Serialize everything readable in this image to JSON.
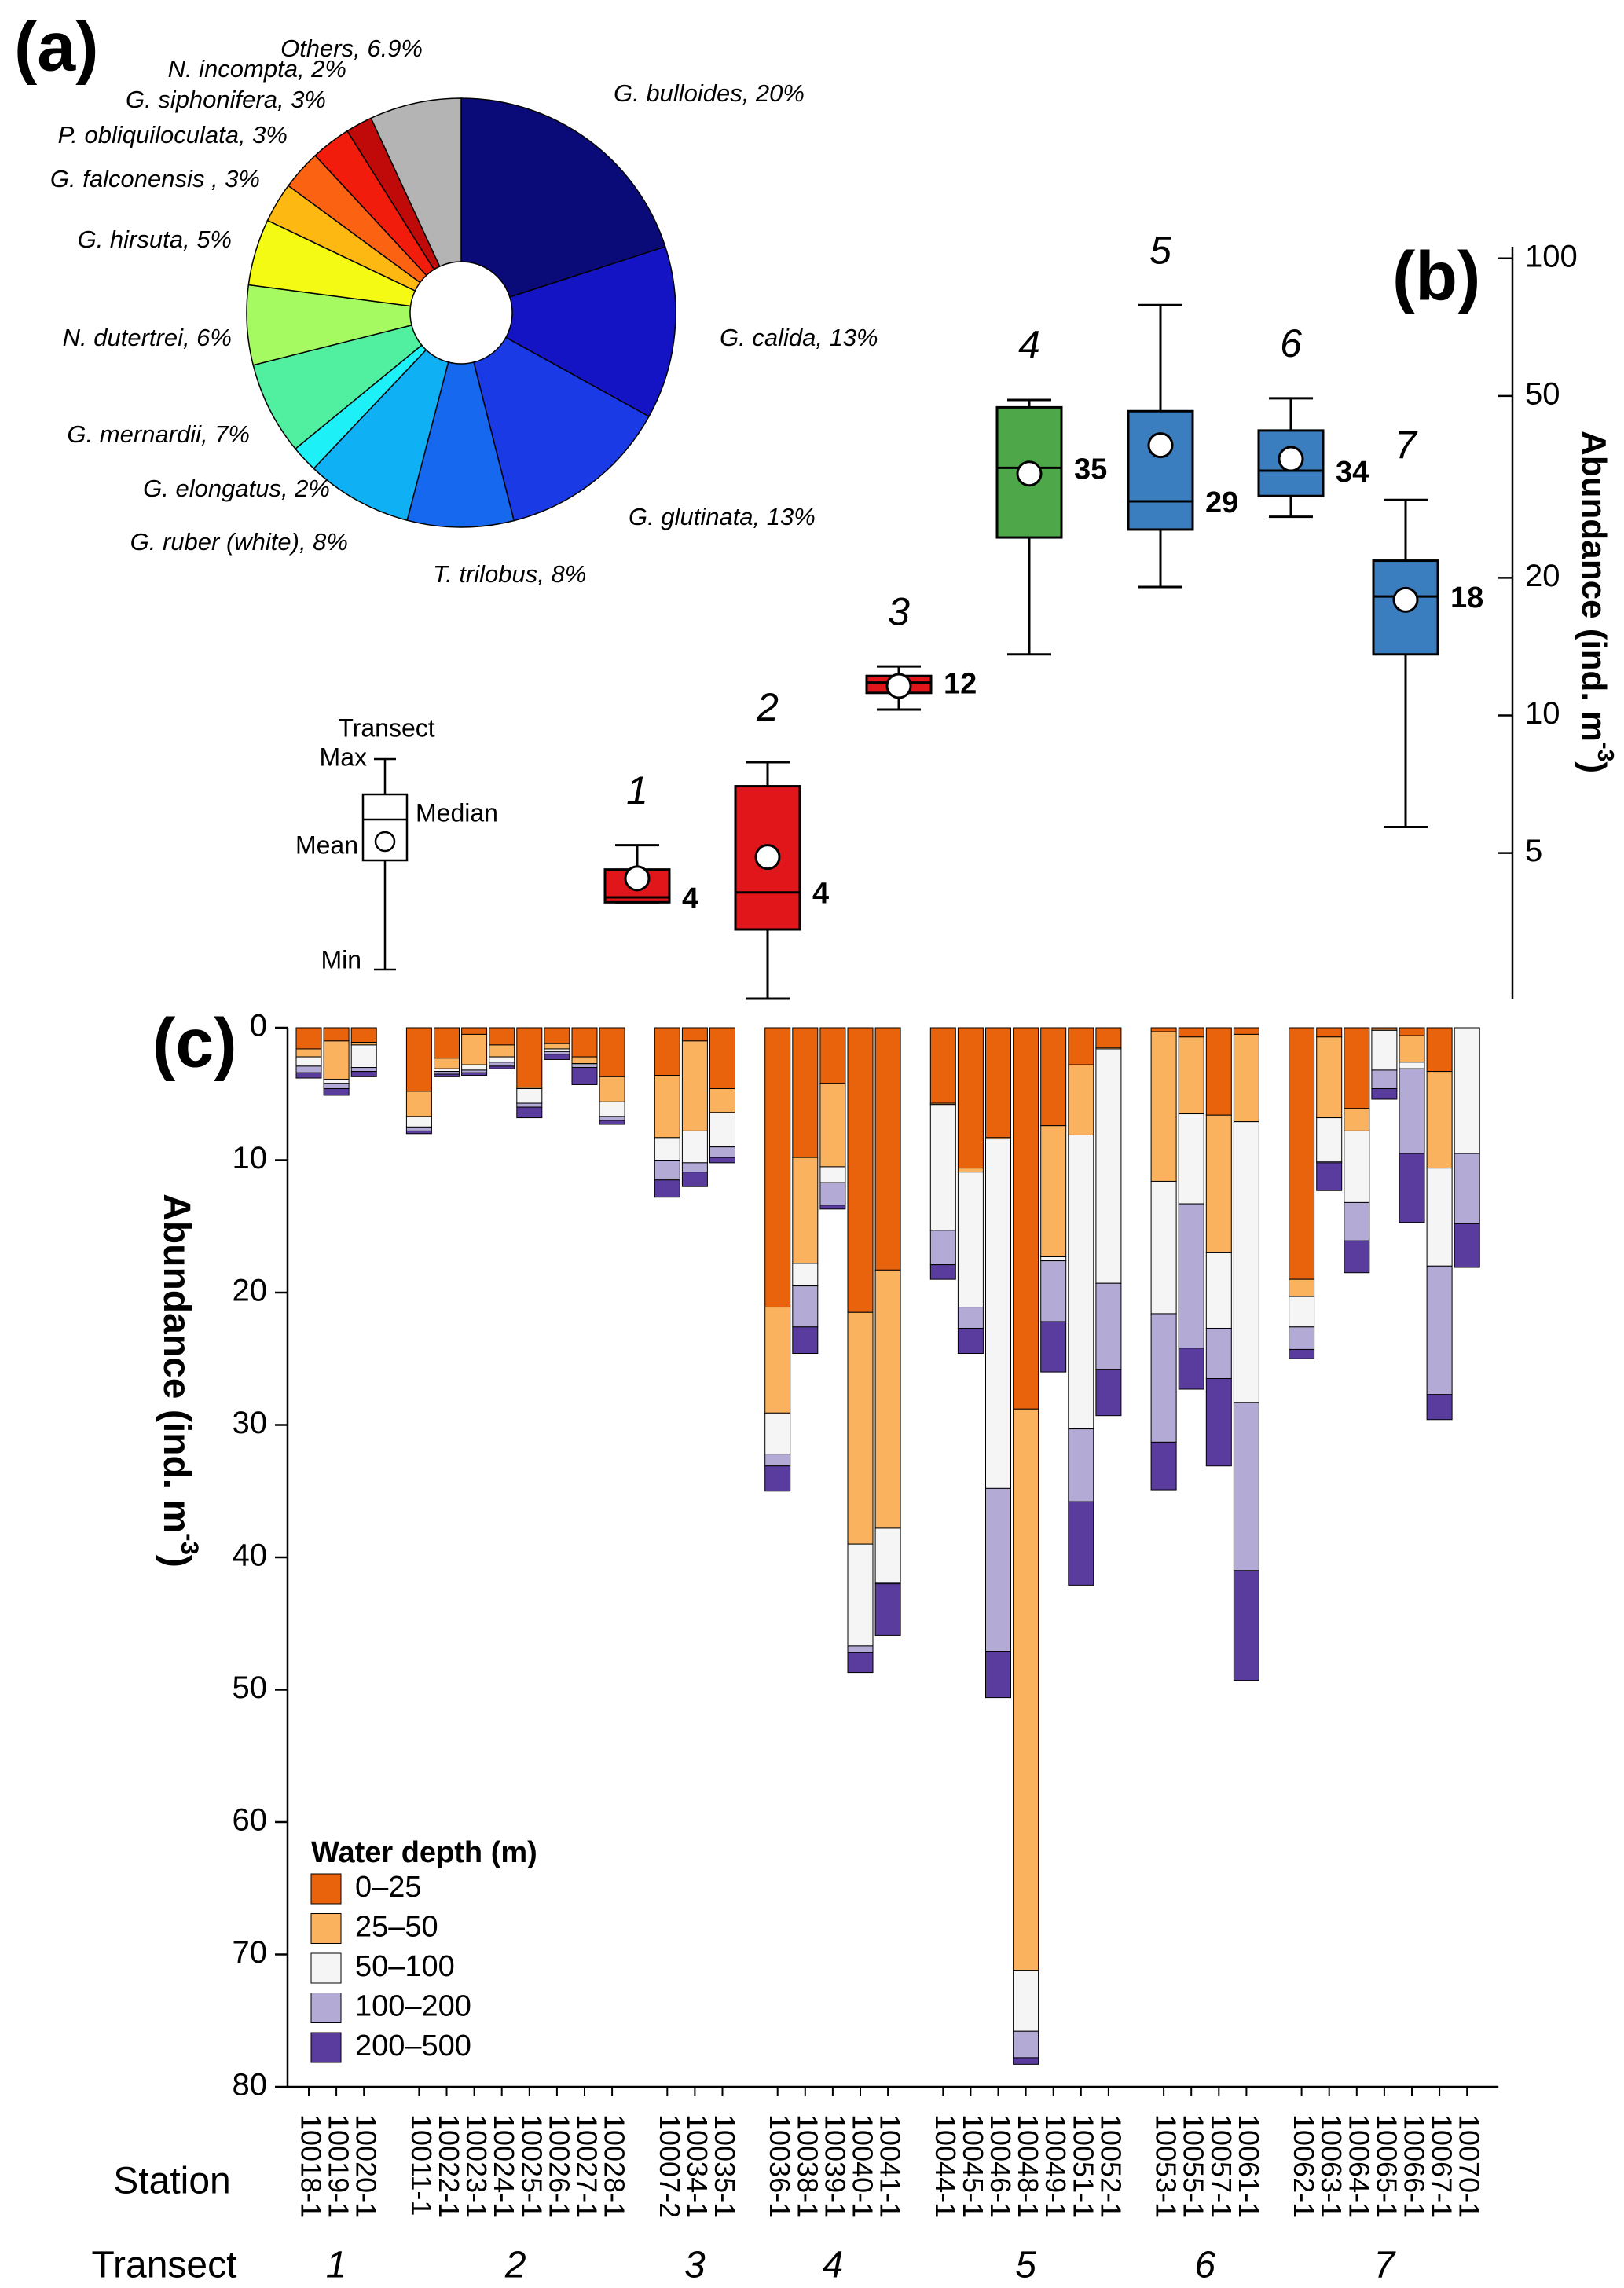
{
  "chart_data": [
    {
      "type": "pie",
      "panel_label": "(a)",
      "categories": [
        "G. bulloides",
        "G. calida",
        "G. glutinata",
        "T. trilobus",
        "G. ruber (white)",
        "G. elongatus",
        "G. mernardii",
        "N. dutertrei",
        "G. hirsuta",
        "G. falconensis",
        "P. obliquiloculata",
        "G. siphonifera",
        "N. incompta",
        "Others"
      ],
      "values": [
        20,
        13,
        13,
        8,
        8,
        2,
        7,
        6,
        5,
        3,
        3,
        3,
        2,
        6.9
      ],
      "value_labels": [
        "G. bulloides, 20%",
        "G. calida, 13%",
        "G. glutinata, 13%",
        "T. trilobus, 8%",
        "G. ruber (white), 8%",
        "G. elongatus, 2%",
        "G. mernardii, 7%",
        "N. dutertrei, 6%",
        "G. hirsuta, 5%",
        "G. falconensis , 3%",
        "P. obliquiloculata, 3%",
        "G. siphonifera, 3%",
        "N. incompta, 2%",
        "Others, 6.9%"
      ],
      "colors": [
        "#0a0a78",
        "#1414c4",
        "#1a3ae6",
        "#1668ee",
        "#10b0f4",
        "#1ef0f8",
        "#50f0a0",
        "#a4fa60",
        "#f5fa14",
        "#fdb812",
        "#fb6212",
        "#f21c0c",
        "#c00a0a",
        "#b4b4b4"
      ]
    },
    {
      "type": "box",
      "panel_label": "(b)",
      "log_y": true,
      "y_label": "Abundance (ind. m",
      "y_label_sup": "-3",
      "y_label_end": ")",
      "categories": [
        "1",
        "2",
        "3",
        "4",
        "5",
        "6",
        "7"
      ],
      "max": [
        5.2,
        7.9,
        12.8,
        49,
        79,
        49.4,
        29.6
      ],
      "q3": [
        4.6,
        7.0,
        12.2,
        47.2,
        46.3,
        42,
        21.8
      ],
      "median": [
        4.0,
        4.1,
        11.8,
        34.8,
        29.4,
        34.3,
        18.2
      ],
      "q1": [
        3.9,
        3.4,
        11.2,
        24.5,
        25.5,
        30.2,
        13.6
      ],
      "min": [
        3.9,
        2.4,
        10.3,
        13.6,
        19.1,
        27.2,
        5.7
      ],
      "mean": [
        4.4,
        4.9,
        11.6,
        33.8,
        39,
        36.4,
        17.9
      ],
      "value_labels": [
        "4",
        "4",
        "12",
        "35",
        "29",
        "34",
        "18"
      ],
      "colors": [
        "#e0161b",
        "#e0161b",
        "#e0161b",
        "#4ea84a",
        "#3b7ec0",
        "#3b7ec0",
        "#3b7ec0"
      ],
      "ylim": [
        2.4,
        106
      ],
      "yticks": [
        5,
        10,
        20,
        50,
        100
      ],
      "key": {
        "title": "Transect",
        "max": "Max",
        "median": "Median",
        "mean": "Mean",
        "min": "Min"
      }
    },
    {
      "type": "stacked_bar",
      "panel_label": "(c)",
      "invert_y": true,
      "y_label": "Abundance (ind. m",
      "y_label_sup": "-3",
      "y_label_end": ")",
      "x_row_label": "Station",
      "group_row_label": "Transect",
      "categories": [
        "10018-1",
        "10019-1",
        "10020-1",
        "10011-1",
        "10022-1",
        "10023-1",
        "10024-1",
        "10025-1",
        "10026-1",
        "10027-1",
        "10028-1",
        "10007-2",
        "10034-1",
        "10035-1",
        "10036-1",
        "10038-1",
        "10039-1",
        "10040-1",
        "10041-1",
        "10044-1",
        "10045-1",
        "10046-1",
        "10048-1",
        "10049-1",
        "10051-1",
        "10052-1",
        "10053-1",
        "10055-1",
        "10057-1",
        "10061-1",
        "10062-1",
        "10063-1",
        "10064-1",
        "10065-1",
        "10066-1",
        "10067-1",
        "10070-1"
      ],
      "groups": [
        "1",
        "1",
        "1",
        "2",
        "2",
        "2",
        "2",
        "2",
        "2",
        "2",
        "2",
        "3",
        "3",
        "3",
        "4",
        "4",
        "4",
        "4",
        "4",
        "5",
        "5",
        "5",
        "5",
        "5",
        "5",
        "5",
        "6",
        "6",
        "6",
        "6",
        "7",
        "7",
        "7",
        "7",
        "7",
        "7",
        "7"
      ],
      "legend_title": "Water depth (m)",
      "series": [
        {
          "name": "0–25",
          "color": "#e8630c",
          "values": [
            1.6,
            1.0,
            1.1,
            4.8,
            2.3,
            0.5,
            1.3,
            4.5,
            1.2,
            2.2,
            3.7,
            3.6,
            1.0,
            4.6,
            21.1,
            9.8,
            4.2,
            21.5,
            18.3,
            5.7,
            10.6,
            8.3,
            28.8,
            7.4,
            2.8,
            1.5,
            0.3,
            0.7,
            6.6,
            0.5,
            19.0,
            0.7,
            6.1,
            0.1,
            0.6,
            3.3,
            0
          ]
        },
        {
          "name": "25–50",
          "color": "#fbb25e",
          "values": [
            0.6,
            2.9,
            0.2,
            1.9,
            0.8,
            2.3,
            0.9,
            0.1,
            0.4,
            0.5,
            1.9,
            4.7,
            6.8,
            1.8,
            8.0,
            8.0,
            6.3,
            17.5,
            19.5,
            0.1,
            0.3,
            0.1,
            42.4,
            9.9,
            5.3,
            0.1,
            11.3,
            5.8,
            10.4,
            6.6,
            1.3,
            6.1,
            1.7,
            0.1,
            2.0,
            7.3,
            0
          ]
        },
        {
          "name": "50–100",
          "color": "#f5f5f5",
          "values": [
            0.7,
            0.3,
            1.7,
            0.8,
            0.2,
            0.4,
            0.4,
            1.1,
            0.2,
            0.1,
            1.1,
            1.7,
            2.4,
            2.6,
            3.1,
            1.7,
            1.2,
            7.7,
            4.1,
            9.5,
            10.2,
            26.4,
            4.6,
            0.3,
            22.2,
            17.7,
            10.0,
            6.8,
            5.7,
            21.2,
            2.3,
            3.3,
            5.4,
            3.0,
            0.5,
            7.4,
            9.5
          ]
        },
        {
          "name": "100–200",
          "color": "#b3aad6",
          "values": [
            0.5,
            0.4,
            0.3,
            0.3,
            0.2,
            0.2,
            0.3,
            0.3,
            0.2,
            0.2,
            0.3,
            1.5,
            0.7,
            0.8,
            0.9,
            3.1,
            1.7,
            0.5,
            0.1,
            2.6,
            1.6,
            12.3,
            2.0,
            4.6,
            5.5,
            6.5,
            9.7,
            10.9,
            3.8,
            12.7,
            1.7,
            0.1,
            2.9,
            1.4,
            6.4,
            9.7,
            5.3
          ]
        },
        {
          "name": "200–500",
          "color": "#5a3c9e",
          "values": [
            0.4,
            0.5,
            0.4,
            0.2,
            0.2,
            0.2,
            0.2,
            0.8,
            0.4,
            1.3,
            0.3,
            1.3,
            1.1,
            0.4,
            1.9,
            2.0,
            0.3,
            1.5,
            3.9,
            1.1,
            1.9,
            3.5,
            0.5,
            3.8,
            6.3,
            3.5,
            3.6,
            3.1,
            6.6,
            8.3,
            0.7,
            2.1,
            2.4,
            0.8,
            5.2,
            1.9,
            3.3
          ]
        }
      ],
      "ylim": [
        0,
        80
      ],
      "yticks": [
        0,
        10,
        20,
        30,
        40,
        50,
        60,
        70,
        80
      ]
    }
  ]
}
